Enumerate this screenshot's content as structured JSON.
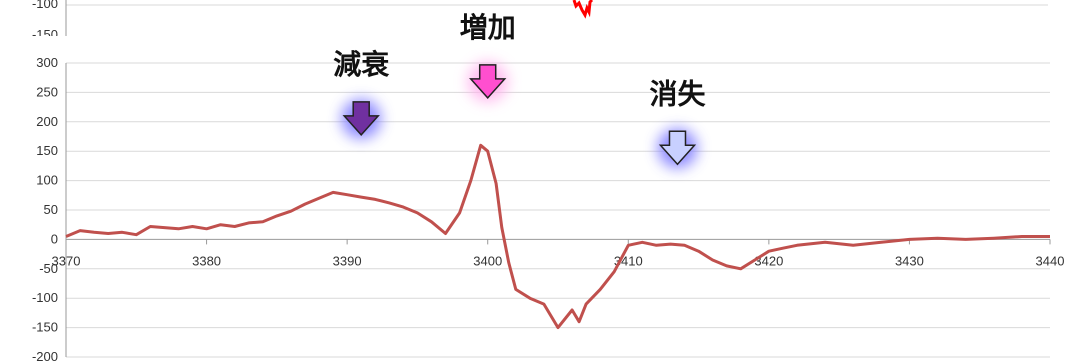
{
  "top_fragment": {
    "tick_labels": [
      "-100",
      "-150"
    ],
    "line_color": "#ff0000"
  },
  "chart_data": {
    "type": "line",
    "title": "",
    "xlabel": "",
    "ylabel": "",
    "xlim": [
      3370,
      3440
    ],
    "ylim": [
      -200,
      300
    ],
    "x_ticks": [
      3370,
      3380,
      3390,
      3400,
      3410,
      3420,
      3430,
      3440
    ],
    "y_ticks": [
      300,
      250,
      200,
      150,
      100,
      50,
      0,
      -50,
      -100,
      -150,
      -200
    ],
    "grid": true,
    "legend": "none",
    "series": [
      {
        "color": "#c0504d",
        "points": [
          [
            3370,
            5
          ],
          [
            3371,
            15
          ],
          [
            3372,
            12
          ],
          [
            3373,
            10
          ],
          [
            3374,
            12
          ],
          [
            3375,
            8
          ],
          [
            3376,
            22
          ],
          [
            3377,
            20
          ],
          [
            3378,
            18
          ],
          [
            3379,
            22
          ],
          [
            3380,
            18
          ],
          [
            3381,
            25
          ],
          [
            3382,
            22
          ],
          [
            3383,
            28
          ],
          [
            3384,
            30
          ],
          [
            3385,
            40
          ],
          [
            3386,
            48
          ],
          [
            3387,
            60
          ],
          [
            3388,
            70
          ],
          [
            3389,
            80
          ],
          [
            3390,
            76
          ],
          [
            3391,
            72
          ],
          [
            3392,
            68
          ],
          [
            3393,
            62
          ],
          [
            3394,
            55
          ],
          [
            3395,
            45
          ],
          [
            3396,
            30
          ],
          [
            3397,
            10
          ],
          [
            3398,
            45
          ],
          [
            3398.8,
            100
          ],
          [
            3399.5,
            160
          ],
          [
            3400,
            150
          ],
          [
            3400.6,
            95
          ],
          [
            3401,
            20
          ],
          [
            3401.5,
            -40
          ],
          [
            3402,
            -85
          ],
          [
            3403,
            -100
          ],
          [
            3404,
            -110
          ],
          [
            3405,
            -150
          ],
          [
            3406,
            -120
          ],
          [
            3406.5,
            -140
          ],
          [
            3407,
            -110
          ],
          [
            3408,
            -85
          ],
          [
            3409,
            -55
          ],
          [
            3410,
            -10
          ],
          [
            3411,
            -5
          ],
          [
            3412,
            -10
          ],
          [
            3413,
            -8
          ],
          [
            3414,
            -10
          ],
          [
            3415,
            -20
          ],
          [
            3416,
            -35
          ],
          [
            3417,
            -45
          ],
          [
            3418,
            -50
          ],
          [
            3419,
            -35
          ],
          [
            3420,
            -20
          ],
          [
            3421,
            -15
          ],
          [
            3422,
            -10
          ],
          [
            3424,
            -5
          ],
          [
            3426,
            -10
          ],
          [
            3428,
            -5
          ],
          [
            3430,
            0
          ],
          [
            3432,
            2
          ],
          [
            3434,
            0
          ],
          [
            3436,
            2
          ],
          [
            3438,
            5
          ],
          [
            3440,
            5
          ]
        ]
      }
    ],
    "annotations": [
      {
        "text": "減衰",
        "x": 3391,
        "arrow_value": 205,
        "arrow_color": "#7030a0",
        "glow_color": "#7b78ff",
        "hollow": false
      },
      {
        "text": "増加",
        "x": 3400,
        "arrow_value": 268,
        "arrow_color": "#ff4fcf",
        "glow_color": "#ffb0ec",
        "hollow": false
      },
      {
        "text": "消失",
        "x": 3413.5,
        "arrow_value": 155,
        "arrow_color": "#b9c3ff",
        "glow_color": "#7b78ff",
        "hollow": true
      }
    ]
  }
}
